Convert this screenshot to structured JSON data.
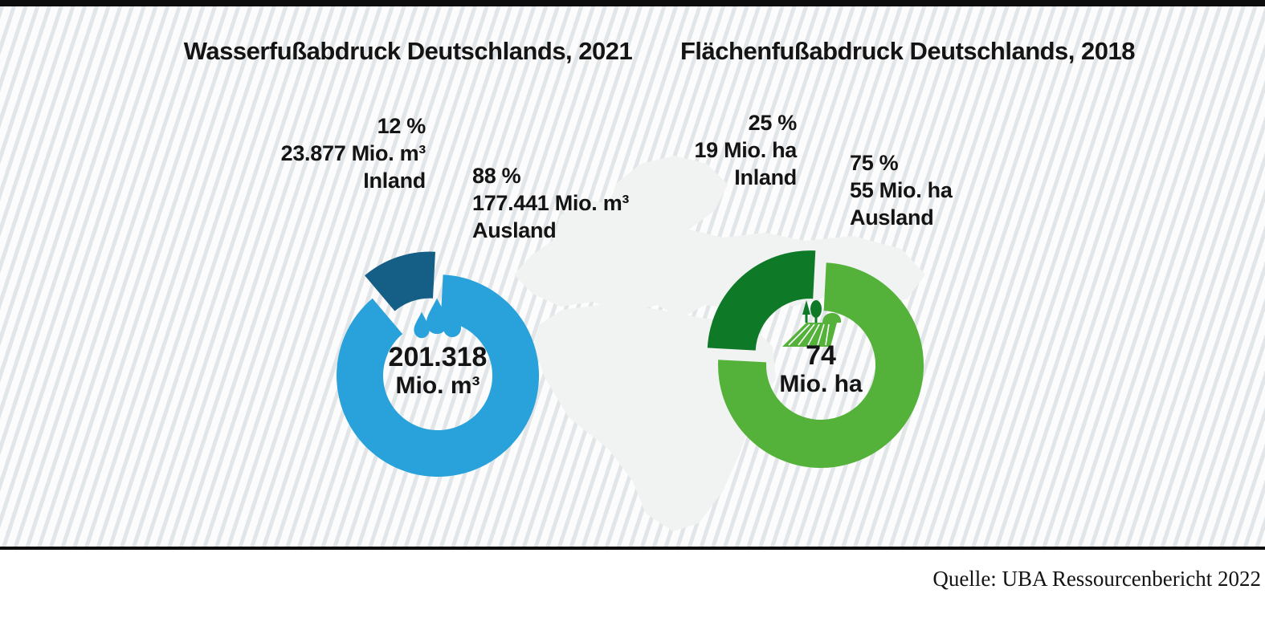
{
  "source": {
    "text": "Quelle: UBA Ressourcenbericht 2022"
  },
  "colors": {
    "water_inland": "#155e85",
    "water_ausland": "#29a2db",
    "land_inland": "#0e7a28",
    "land_ausland": "#54b23a",
    "frame_bar": "#0d0d0d",
    "hatch_gray": "#e3e6e8",
    "map_silhouette": "#f1f2f2"
  },
  "chart_data": [
    {
      "type": "pie",
      "variant": "donut-exploded",
      "title": "Wasserfußabdruck Deutschlands, 2021",
      "unit": "Mio. m³",
      "total": {
        "value": 201318,
        "display": "201.318",
        "unit": "Mio. m³"
      },
      "center_icon": "water-drops-icon",
      "legend_position": "callout-labels",
      "categories": [
        "Inland",
        "Ausland"
      ],
      "values": [
        23877,
        177441
      ],
      "slices": [
        {
          "category": "Inland",
          "percent": 12,
          "percent_display": "12 %",
          "value": 23877,
          "display": "23.877 Mio. m³",
          "color": "#155e85",
          "exploded": true
        },
        {
          "category": "Ausland",
          "percent": 88,
          "percent_display": "88 %",
          "value": 177441,
          "display": "177.441 Mio. m³",
          "color": "#29a2db",
          "exploded": false
        }
      ]
    },
    {
      "type": "pie",
      "variant": "donut-exploded",
      "title": "Flächenfußabdruck Deutschlands, 2018",
      "unit": "Mio. ha",
      "total": {
        "value": 74,
        "display": "74",
        "unit": "Mio. ha"
      },
      "center_icon": "field-trees-icon",
      "legend_position": "callout-labels",
      "categories": [
        "Inland",
        "Ausland"
      ],
      "values": [
        19,
        55
      ],
      "slices": [
        {
          "category": "Inland",
          "percent": 25,
          "percent_display": "25 %",
          "value": 19,
          "display": "19 Mio. ha",
          "color": "#0e7a28",
          "exploded": true
        },
        {
          "category": "Ausland",
          "percent": 75,
          "percent_display": "75 %",
          "value": 55,
          "display": "55 Mio. ha",
          "color": "#54b23a",
          "exploded": false
        }
      ]
    }
  ]
}
